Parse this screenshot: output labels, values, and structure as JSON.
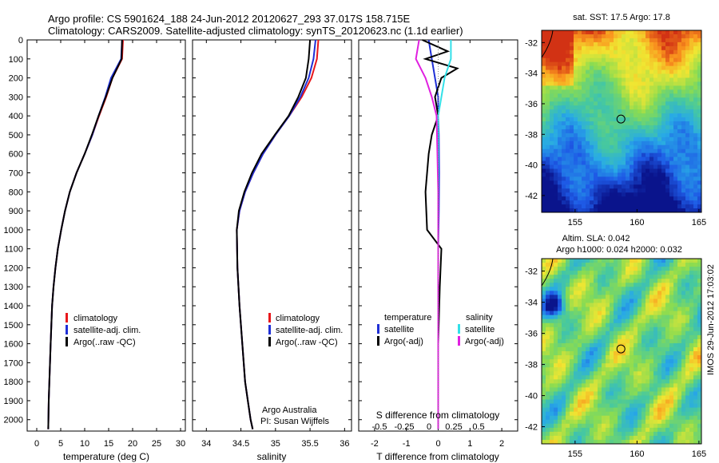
{
  "header": {
    "line1": "Argo profile: CS 5901624_188 24-Jun-2012 20120627_293 37.017S 158.715E",
    "line2": "Climatology: CARS2009. Satellite-adjusted climatology: synTS_20120623.nc (1.1d earlier)"
  },
  "side_label": "IMOS 29-Jun-2012 17:03:02",
  "colors": {
    "climatology": "#e8171b",
    "satellite": "#1f2fd6",
    "argo": "#000000",
    "argo_s": "#e020e0",
    "sat_s": "#33e0e8"
  },
  "map_titles": {
    "sst": "sat. SST: 17.5 Argo: 17.8",
    "sla_1": "Altim. SLA: 0.042",
    "sla_2": "Argo h1000: 0.024 h2000: 0.032"
  },
  "legend_tp": {
    "items": [
      "climatology",
      "satellite-adj. clim.",
      "Argo(..raw -QC)"
    ]
  },
  "legend_sp": {
    "items": [
      "climatology",
      "satellite-adj. clim.",
      "Argo(..raw -QC)"
    ]
  },
  "legend_diff": {
    "temperature": "temperature",
    "salinity": "salinity",
    "t_sat": "satellite",
    "t_argo": "Argo(-adj)",
    "s_sat": "satellite",
    "s_argo": "Argo(-adj)"
  },
  "salinity_notes": {
    "line1": "Argo Australia",
    "line2": "PI: Susan Wijffels"
  },
  "chart_data": [
    {
      "type": "line",
      "name": "temperature-profile",
      "xlabel": "temperature (deg C)",
      "xlim": [
        -2,
        31
      ],
      "ylim": [
        2060,
        0
      ],
      "xticks": [
        0,
        5,
        10,
        15,
        20,
        25,
        30
      ],
      "yticks": [
        0,
        100,
        200,
        300,
        400,
        500,
        600,
        700,
        800,
        900,
        1000,
        1100,
        1200,
        1300,
        1400,
        1500,
        1600,
        1700,
        1800,
        1900,
        2000
      ],
      "series": [
        {
          "name": "climatology",
          "x": [
            18.0,
            17.8,
            15.8,
            14.5,
            13.0,
            11.6,
            10.0,
            8.3,
            6.9,
            5.9,
            5.1,
            4.4,
            3.9,
            3.5,
            3.2,
            2.9,
            2.5,
            2.4
          ],
          "y": [
            0,
            100,
            200,
            300,
            400,
            500,
            600,
            700,
            800,
            900,
            1000,
            1100,
            1200,
            1300,
            1400,
            1600,
            1900,
            2050
          ]
        },
        {
          "name": "satellite-adj. clim.",
          "x": [
            17.8,
            17.6,
            15.5,
            14.3,
            12.9,
            11.6,
            10.0,
            8.3,
            6.9,
            5.9,
            5.1,
            4.4,
            3.9,
            3.5,
            3.2,
            2.9,
            2.5,
            2.4
          ],
          "y": [
            0,
            100,
            200,
            300,
            400,
            500,
            600,
            700,
            800,
            900,
            1000,
            1100,
            1200,
            1300,
            1400,
            1600,
            1900,
            2050
          ]
        },
        {
          "name": "Argo(..raw -QC)",
          "x": [
            17.8,
            17.7,
            15.8,
            14.4,
            12.9,
            11.5,
            10.0,
            8.3,
            6.9,
            5.9,
            5.1,
            4.4,
            3.9,
            3.5,
            3.2,
            2.9,
            2.5,
            2.4
          ],
          "y": [
            0,
            100,
            200,
            300,
            400,
            500,
            600,
            700,
            800,
            900,
            1000,
            1100,
            1200,
            1300,
            1400,
            1600,
            1900,
            2050
          ]
        }
      ]
    },
    {
      "type": "line",
      "name": "salinity-profile",
      "xlabel": "salinity",
      "xlim": [
        33.8,
        36.1
      ],
      "ylim": [
        2060,
        0
      ],
      "xticks": [
        34,
        34.5,
        35,
        35.5,
        36
      ],
      "series": [
        {
          "name": "climatology",
          "x": [
            35.62,
            35.6,
            35.52,
            35.38,
            35.2,
            35.0,
            34.82,
            34.68,
            34.56,
            34.48,
            34.44,
            34.45,
            34.48,
            34.52,
            34.56,
            34.6,
            34.64,
            34.67
          ],
          "y": [
            0,
            100,
            200,
            300,
            400,
            500,
            600,
            700,
            800,
            900,
            1000,
            1200,
            1400,
            1600,
            1800,
            1900,
            2000,
            2050
          ]
        },
        {
          "name": "satellite-adj. clim.",
          "x": [
            35.58,
            35.55,
            35.48,
            35.36,
            35.2,
            35.0,
            34.82,
            34.68,
            34.56,
            34.48,
            34.44,
            34.45,
            34.48,
            34.52,
            34.56,
            34.6,
            34.64,
            34.67
          ],
          "y": [
            0,
            100,
            200,
            300,
            400,
            500,
            600,
            700,
            800,
            900,
            1000,
            1200,
            1400,
            1600,
            1800,
            1900,
            2000,
            2050
          ]
        },
        {
          "name": "Argo(..raw -QC)",
          "x": [
            35.5,
            35.48,
            35.44,
            35.33,
            35.19,
            34.99,
            34.8,
            34.66,
            34.55,
            34.47,
            34.44,
            34.45,
            34.48,
            34.52,
            34.56,
            34.6,
            34.64,
            34.67
          ],
          "y": [
            0,
            100,
            200,
            300,
            400,
            500,
            600,
            700,
            800,
            900,
            1000,
            1200,
            1400,
            1600,
            1800,
            1900,
            2000,
            2050
          ]
        }
      ]
    },
    {
      "type": "line",
      "name": "difference-profile",
      "xlabel": "T difference from climatology",
      "xlabel_top": "S difference from climatology",
      "xlim": [
        -2.5,
        2.5
      ],
      "ylim": [
        2060,
        0
      ],
      "xticks": [
        -2,
        -1,
        0,
        1,
        2
      ],
      "s_ticks": [
        "-0.5",
        "-0.25",
        "0",
        "0.25",
        "0.5"
      ],
      "series": [
        {
          "name": "temperature satellite",
          "x": [
            -0.3,
            -0.25,
            -0.2,
            -0.15,
            -0.1,
            0.0,
            0.0,
            0.02,
            0.03,
            0.02,
            0.0,
            0.0,
            0.0
          ],
          "y": [
            0,
            50,
            100,
            150,
            200,
            300,
            400,
            500,
            700,
            900,
            1100,
            1500,
            2050
          ]
        },
        {
          "name": "temperature Argo(-adj)",
          "x": [
            -0.5,
            0.3,
            -0.4,
            0.6,
            0.1,
            -0.1,
            0.0,
            -0.2,
            -0.3,
            -0.4,
            -0.35,
            0.1,
            0.05,
            0.0,
            0.0
          ],
          "y": [
            0,
            60,
            100,
            150,
            200,
            300,
            400,
            500,
            600,
            800,
            1000,
            1100,
            1300,
            1600,
            2050
          ]
        },
        {
          "name": "salinity satellite",
          "x": [
            0.4,
            0.4,
            0.2,
            0.1,
            0.0,
            0.0,
            0.0,
            0.0
          ],
          "y": [
            0,
            100,
            200,
            300,
            400,
            800,
            1500,
            2050
          ]
        },
        {
          "name": "salinity Argo(-adj)",
          "x": [
            -0.6,
            -0.7,
            -0.4,
            -0.2,
            -0.05,
            0.0,
            0.0
          ],
          "y": [
            0,
            100,
            200,
            300,
            400,
            800,
            2050
          ]
        }
      ]
    }
  ],
  "maps": [
    {
      "name": "sst-map",
      "xticks": [
        155,
        160,
        165
      ],
      "yticks": [
        -32,
        -34,
        -36,
        -38,
        -40,
        -42
      ],
      "xlim": [
        152.3,
        165.2
      ],
      "ylim": [
        -43.1,
        -31.2
      ],
      "marker": [
        158.7,
        -37.0
      ]
    },
    {
      "name": "sla-map",
      "xticks": [
        155,
        160,
        165
      ],
      "yticks": [
        -32,
        -34,
        -36,
        -38,
        -40,
        -42
      ],
      "xlim": [
        152.3,
        165.2
      ],
      "ylim": [
        -43.1,
        -31.2
      ],
      "marker": [
        158.7,
        -37.0
      ]
    }
  ]
}
